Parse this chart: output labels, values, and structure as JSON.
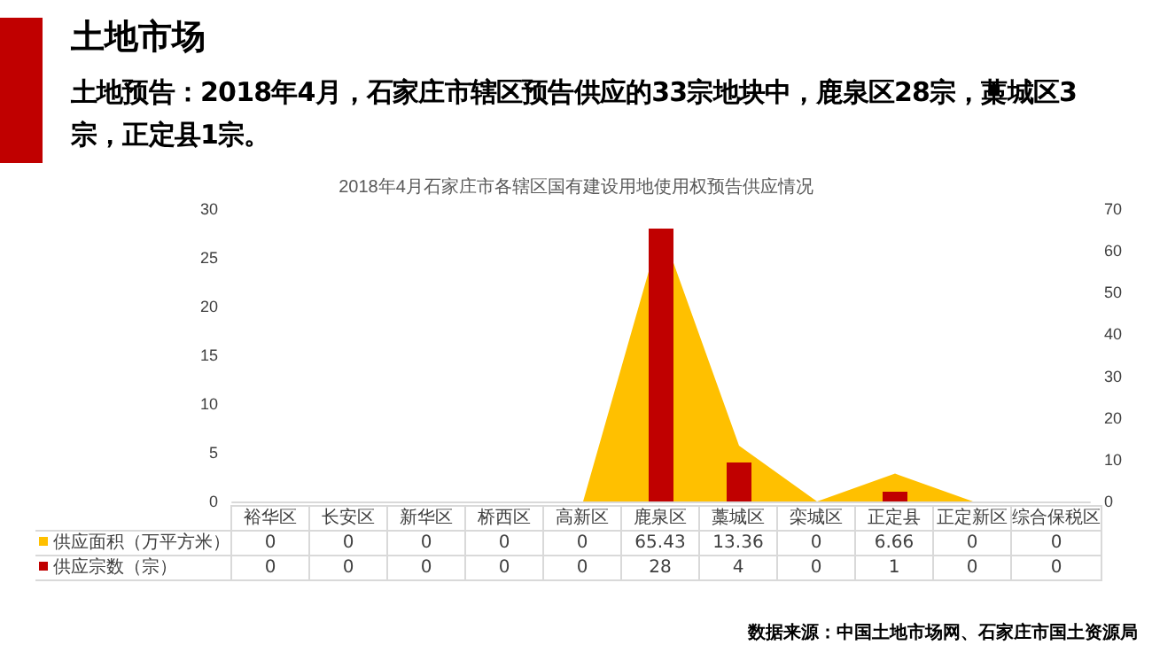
{
  "chart_data": {
    "type": "bar",
    "title": "2018年4月石家庄市各辖区国有建设用地使用权预告供应情况",
    "annotations": [
      "土地市场",
      "土地预告：2018年4月，石家庄市辖区预告供应的33宗地块中，鹿泉区28宗，藁城区3宗，正定县1宗。",
      "数据来源：中国土地市场网、石家庄市国土资源局"
    ],
    "categories": [
      "裕华区",
      "长安区",
      "新华区",
      "桥西区",
      "高新区",
      "鹿泉区",
      "藁城区",
      "栾城区",
      "正定县",
      "正定新区",
      "综合保税区"
    ],
    "series": [
      {
        "name": "供应面积（万平方米）",
        "type": "area",
        "axis": "y2",
        "color": "#ffc000",
        "values": [
          0,
          0,
          0,
          0,
          0,
          65.43,
          13.36,
          0,
          6.66,
          0,
          0
        ]
      },
      {
        "name": "供应宗数（宗）",
        "color": "#c00000",
        "values": [
          0,
          0,
          0,
          0,
          0,
          28,
          4,
          0,
          1,
          0,
          0
        ]
      }
    ],
    "ylim": [
      0,
      30
    ],
    "yticks": [
      0,
      5,
      10,
      15,
      20,
      25,
      30
    ],
    "y2lim": [
      0,
      70
    ],
    "y2ticks": [
      0,
      10,
      20,
      30,
      40,
      50,
      60,
      70
    ],
    "data_labels": true,
    "grid": false,
    "legend": "bottom left"
  }
}
